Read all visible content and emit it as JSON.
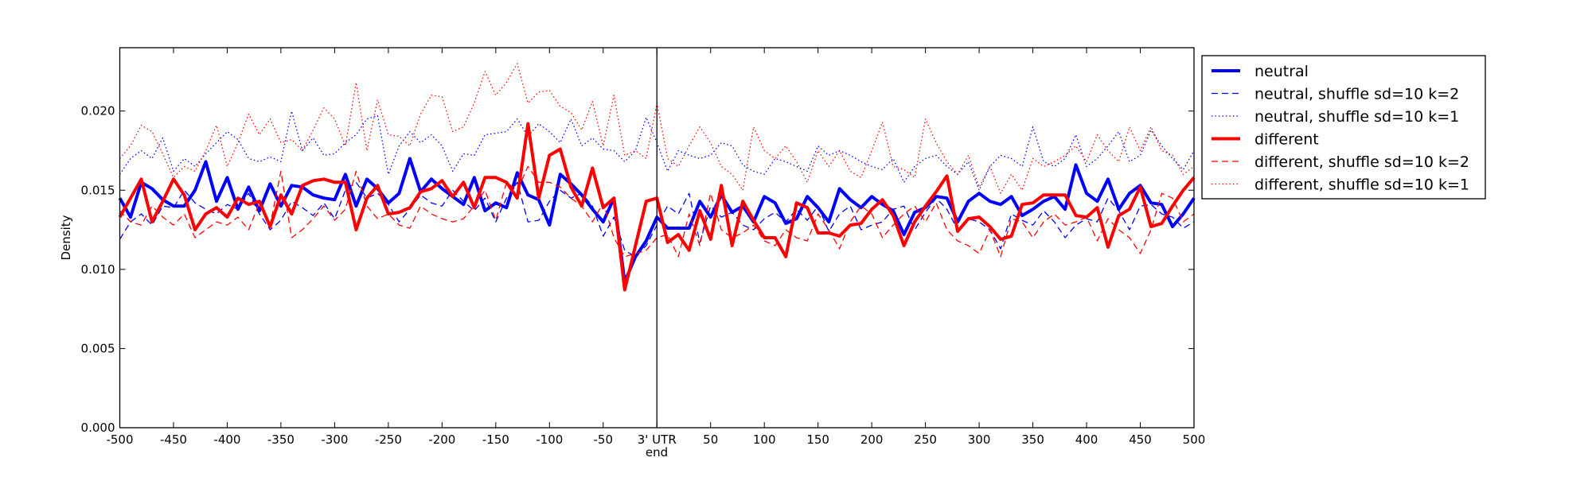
{
  "chart_data": {
    "type": "line",
    "title": "",
    "xlabel": "end",
    "ylabel": "Density",
    "xlim": [
      -500,
      500
    ],
    "ylim": [
      0,
      0.024
    ],
    "x_step": 10,
    "grid": false,
    "legend_placement": "outside-right-top",
    "vline_x": 0,
    "xticks": [
      -500,
      -450,
      -400,
      -350,
      -300,
      -250,
      -200,
      -150,
      -100,
      -50,
      0,
      50,
      100,
      150,
      200,
      250,
      300,
      350,
      400,
      450,
      500
    ],
    "xtick_labels": [
      "-500",
      "-450",
      "-400",
      "-350",
      "-300",
      "-250",
      "-200",
      "-150",
      "-100",
      "-50",
      "3' UTR",
      "50",
      "100",
      "150",
      "200",
      "250",
      "300",
      "350",
      "400",
      "450",
      "500"
    ],
    "yticks": [
      0,
      0.005,
      0.01,
      0.015,
      0.02
    ],
    "ytick_labels": [
      "0.000",
      "0.005",
      "0.010",
      "0.015",
      "0.020"
    ],
    "series": [
      {
        "name": "neutral",
        "color": "#0000ff",
        "style": "solid",
        "width": 4,
        "values": [
          0.0145,
          0.0133,
          0.0155,
          0.0151,
          0.0144,
          0.014,
          0.014,
          0.015,
          0.0168,
          0.0143,
          0.0158,
          0.0138,
          0.0152,
          0.0137,
          0.0154,
          0.014,
          0.0153,
          0.0152,
          0.0147,
          0.0145,
          0.0144,
          0.016,
          0.014,
          0.0157,
          0.0151,
          0.0142,
          0.0148,
          0.017,
          0.0149,
          0.0157,
          0.0151,
          0.0146,
          0.0141,
          0.0158,
          0.0137,
          0.0142,
          0.0139,
          0.0161,
          0.0147,
          0.0144,
          0.0128,
          0.016,
          0.0154,
          0.0147,
          0.0138,
          0.013,
          0.0145,
          0.0092,
          0.0108,
          0.0118,
          0.0133,
          0.0126,
          0.0126,
          0.0126,
          0.0143,
          0.0133,
          0.0147,
          0.0136,
          0.014,
          0.013,
          0.0146,
          0.0142,
          0.0129,
          0.0132,
          0.0146,
          0.0139,
          0.013,
          0.0151,
          0.0144,
          0.0139,
          0.0146,
          0.0141,
          0.0137,
          0.0122,
          0.0136,
          0.0139,
          0.0146,
          0.0145,
          0.013,
          0.0143,
          0.0148,
          0.0143,
          0.0141,
          0.0146,
          0.0134,
          0.0138,
          0.0143,
          0.0146,
          0.0138,
          0.0166,
          0.0148,
          0.0143,
          0.0157,
          0.0138,
          0.0148,
          0.0153,
          0.0142,
          0.0141,
          0.0127,
          0.0135,
          0.0145
        ]
      },
      {
        "name": "neutral, shuffle sd=10 k=2",
        "color": "#0000ff",
        "style": "dashed",
        "width": 1.3,
        "values": [
          0.0119,
          0.013,
          0.0135,
          0.0128,
          0.014,
          0.0139,
          0.015,
          0.0142,
          0.0138,
          0.0135,
          0.0141,
          0.0138,
          0.0148,
          0.0135,
          0.0125,
          0.0131,
          0.0143,
          0.0139,
          0.0134,
          0.0142,
          0.0132,
          0.015,
          0.0155,
          0.0145,
          0.0148,
          0.0141,
          0.013,
          0.0138,
          0.0147,
          0.0142,
          0.014,
          0.015,
          0.0143,
          0.0137,
          0.0145,
          0.013,
          0.0145,
          0.0155,
          0.013,
          0.0131,
          0.0143,
          0.015,
          0.0145,
          0.0148,
          0.014,
          0.0121,
          0.0133,
          0.0112,
          0.0108,
          0.0115,
          0.0128,
          0.014,
          0.0135,
          0.0148,
          0.0117,
          0.014,
          0.0133,
          0.0136,
          0.0128,
          0.0125,
          0.0132,
          0.0136,
          0.013,
          0.0138,
          0.0131,
          0.014,
          0.0124,
          0.0135,
          0.014,
          0.0125,
          0.0128,
          0.013,
          0.0138,
          0.014,
          0.0125,
          0.0136,
          0.0145,
          0.0138,
          0.0125,
          0.0132,
          0.013,
          0.0125,
          0.0113,
          0.0135,
          0.0131,
          0.0128,
          0.0137,
          0.013,
          0.012,
          0.0128,
          0.0132,
          0.013,
          0.0145,
          0.0137,
          0.0125,
          0.014,
          0.0141,
          0.0135,
          0.0133,
          0.0126,
          0.013
        ]
      },
      {
        "name": "neutral, shuffle sd=10 k=1",
        "color": "#0000ff",
        "style": "dotted",
        "width": 1.3,
        "values": [
          0.016,
          0.017,
          0.0175,
          0.017,
          0.0183,
          0.0162,
          0.017,
          0.0165,
          0.0173,
          0.018,
          0.0187,
          0.0182,
          0.017,
          0.0168,
          0.0171,
          0.0168,
          0.02,
          0.0175,
          0.0183,
          0.0172,
          0.0173,
          0.018,
          0.0185,
          0.0195,
          0.0197,
          0.016,
          0.0178,
          0.0187,
          0.018,
          0.0185,
          0.0178,
          0.0162,
          0.0173,
          0.0172,
          0.0185,
          0.0186,
          0.0187,
          0.0195,
          0.0184,
          0.0192,
          0.0187,
          0.018,
          0.0195,
          0.0178,
          0.0183,
          0.0176,
          0.0175,
          0.0168,
          0.0175,
          0.0196,
          0.018,
          0.0162,
          0.0175,
          0.0172,
          0.017,
          0.0172,
          0.018,
          0.0178,
          0.0166,
          0.0162,
          0.016,
          0.017,
          0.0168,
          0.0165,
          0.0162,
          0.0178,
          0.0172,
          0.0175,
          0.0172,
          0.0168,
          0.0165,
          0.0163,
          0.017,
          0.0155,
          0.0165,
          0.017,
          0.0172,
          0.0165,
          0.016,
          0.0168,
          0.015,
          0.0165,
          0.0172,
          0.017,
          0.0165,
          0.019,
          0.0168,
          0.0165,
          0.017,
          0.0185,
          0.0165,
          0.017,
          0.0178,
          0.0187,
          0.0168,
          0.0172,
          0.0188,
          0.0178,
          0.017,
          0.0163,
          0.0175
        ]
      },
      {
        "name": "different",
        "color": "#ff0000",
        "style": "solid",
        "width": 4,
        "values": [
          0.0133,
          0.0145,
          0.0157,
          0.013,
          0.0143,
          0.0157,
          0.0147,
          0.0125,
          0.0135,
          0.0139,
          0.0133,
          0.0145,
          0.0141,
          0.0143,
          0.0127,
          0.0147,
          0.0135,
          0.0153,
          0.0156,
          0.0157,
          0.0155,
          0.0155,
          0.0125,
          0.0145,
          0.0153,
          0.0135,
          0.0136,
          0.0139,
          0.0149,
          0.0151,
          0.0156,
          0.0146,
          0.0155,
          0.0139,
          0.0158,
          0.0158,
          0.0155,
          0.0145,
          0.0192,
          0.0145,
          0.0172,
          0.0176,
          0.0152,
          0.014,
          0.0164,
          0.0139,
          0.0145,
          0.0087,
          0.0115,
          0.0143,
          0.0145,
          0.0117,
          0.0122,
          0.0112,
          0.0137,
          0.0119,
          0.0153,
          0.0115,
          0.0143,
          0.0131,
          0.012,
          0.012,
          0.0108,
          0.0142,
          0.0139,
          0.0123,
          0.0123,
          0.0121,
          0.0128,
          0.0129,
          0.0138,
          0.0144,
          0.0134,
          0.0115,
          0.013,
          0.014,
          0.0149,
          0.0159,
          0.0124,
          0.0132,
          0.0133,
          0.0127,
          0.0119,
          0.0121,
          0.0141,
          0.0142,
          0.0147,
          0.0147,
          0.0147,
          0.0134,
          0.0133,
          0.0139,
          0.0114,
          0.0134,
          0.0138,
          0.0152,
          0.0127,
          0.0129,
          0.014,
          0.015,
          0.0158
        ]
      },
      {
        "name": "different, shuffle sd=10 k=2",
        "color": "#ff0000",
        "style": "dashed",
        "width": 1.3,
        "values": [
          0.0137,
          0.013,
          0.0128,
          0.014,
          0.0133,
          0.0128,
          0.0135,
          0.012,
          0.0125,
          0.013,
          0.0128,
          0.0133,
          0.0125,
          0.0142,
          0.0128,
          0.0162,
          0.012,
          0.0125,
          0.0132,
          0.014,
          0.0131,
          0.0138,
          0.0162,
          0.014,
          0.0132,
          0.0135,
          0.0128,
          0.0126,
          0.014,
          0.0135,
          0.0132,
          0.013,
          0.0132,
          0.014,
          0.015,
          0.0131,
          0.0155,
          0.015,
          0.0165,
          0.0155,
          0.0155,
          0.0152,
          0.0145,
          0.014,
          0.013,
          0.0142,
          0.012,
          0.0108,
          0.011,
          0.0112,
          0.012,
          0.0122,
          0.0108,
          0.0135,
          0.0115,
          0.0148,
          0.0125,
          0.012,
          0.0123,
          0.0128,
          0.0118,
          0.0115,
          0.0125,
          0.012,
          0.0118,
          0.0135,
          0.0125,
          0.0113,
          0.013,
          0.014,
          0.0135,
          0.012,
          0.0128,
          0.0135,
          0.014,
          0.013,
          0.0142,
          0.0125,
          0.0118,
          0.0115,
          0.011,
          0.0125,
          0.0108,
          0.0132,
          0.013,
          0.012,
          0.013,
          0.0135,
          0.0128,
          0.013,
          0.0133,
          0.0118,
          0.0132,
          0.0125,
          0.012,
          0.011,
          0.0125,
          0.0148,
          0.0145,
          0.013,
          0.0135
        ]
      },
      {
        "name": "different, shuffle sd=10 k=1",
        "color": "#ff0000",
        "style": "dotted",
        "width": 1.3,
        "values": [
          0.017,
          0.0178,
          0.0191,
          0.0187,
          0.0173,
          0.0158,
          0.0165,
          0.0162,
          0.0175,
          0.0191,
          0.0165,
          0.018,
          0.0198,
          0.0185,
          0.0195,
          0.018,
          0.0182,
          0.0175,
          0.0188,
          0.0202,
          0.0195,
          0.0178,
          0.0218,
          0.0175,
          0.0207,
          0.0185,
          0.0184,
          0.0178,
          0.0198,
          0.021,
          0.0209,
          0.0187,
          0.019,
          0.0205,
          0.0225,
          0.021,
          0.0218,
          0.023,
          0.0205,
          0.0212,
          0.0213,
          0.0203,
          0.0199,
          0.0188,
          0.0206,
          0.0178,
          0.021,
          0.0172,
          0.0175,
          0.017,
          0.0205,
          0.017,
          0.0165,
          0.0178,
          0.019,
          0.018,
          0.0165,
          0.016,
          0.015,
          0.019,
          0.0175,
          0.017,
          0.0178,
          0.0168,
          0.0155,
          0.0175,
          0.0165,
          0.0175,
          0.0162,
          0.0158,
          0.0175,
          0.0193,
          0.0165,
          0.0163,
          0.0158,
          0.0195,
          0.018,
          0.0168,
          0.016,
          0.0172,
          0.0152,
          0.0165,
          0.0148,
          0.016,
          0.015,
          0.017,
          0.0165,
          0.0168,
          0.0172,
          0.0178,
          0.0168,
          0.0185,
          0.0175,
          0.0168,
          0.019,
          0.0175,
          0.019,
          0.0175,
          0.0172,
          0.016,
          0.0165
        ]
      }
    ]
  }
}
